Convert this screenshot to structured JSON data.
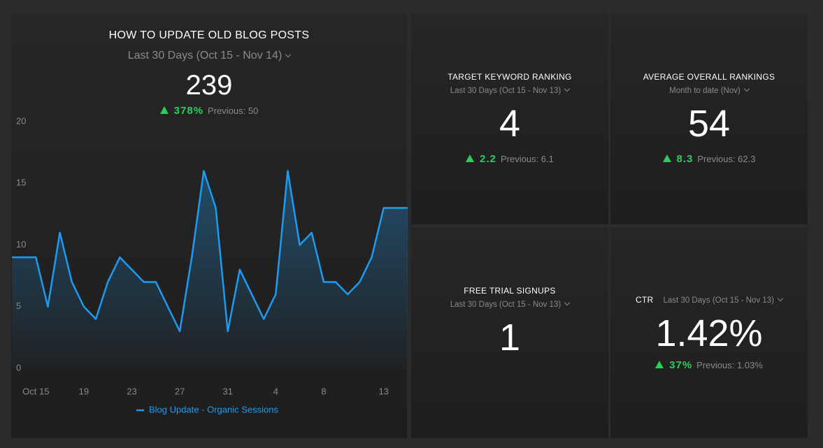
{
  "main": {
    "title": "HOW TO UPDATE OLD BLOG POSTS",
    "period": "Last 30 Days (Oct 15 - Nov 14)",
    "value": "239",
    "change": "378%",
    "previous": "Previous: 50"
  },
  "chart_data": {
    "type": "line",
    "categories": [
      null,
      null,
      "Oct 15",
      null,
      null,
      null,
      "19",
      null,
      null,
      null,
      "23",
      null,
      null,
      null,
      "27",
      null,
      null,
      null,
      "31",
      null,
      null,
      null,
      "4",
      null,
      null,
      null,
      "8",
      null,
      null,
      null,
      null,
      "13",
      null,
      null
    ],
    "series": [
      {
        "name": "Blog Update - Organic Sessions",
        "color": "#1e9bf0",
        "values": [
          9,
          9,
          9,
          5,
          11,
          7,
          5,
          4,
          7,
          9,
          8,
          7,
          7,
          5,
          3,
          9,
          16,
          13,
          3,
          8,
          6,
          4,
          6,
          16,
          10,
          11,
          7,
          7,
          6,
          7,
          9,
          13,
          13,
          13
        ]
      }
    ],
    "ylim": [
      0,
      20
    ],
    "yticks": [
      0,
      5,
      10,
      15,
      20
    ],
    "grid": false
  },
  "cards": [
    {
      "title": "TARGET KEYWORD RANKING",
      "period": "Last 30 Days (Oct 15 - Nov 13)",
      "value": "4",
      "change": "2.2",
      "previous": "Previous: 6.1"
    },
    {
      "title": "AVERAGE OVERALL RANKINGS",
      "period": "Month to date (Nov)",
      "value": "54",
      "change": "8.3",
      "previous": "Previous: 62.3"
    },
    {
      "title": "FREE TRIAL SIGNUPS",
      "period": "Last 30 Days (Oct 15 - Nov 13)",
      "value": "1"
    },
    {
      "title": "CTR",
      "period": "Last 30 Days (Oct 15 - Nov 13)",
      "value": "1.42%",
      "change": "37%",
      "previous": "Previous: 1.03%"
    }
  ]
}
